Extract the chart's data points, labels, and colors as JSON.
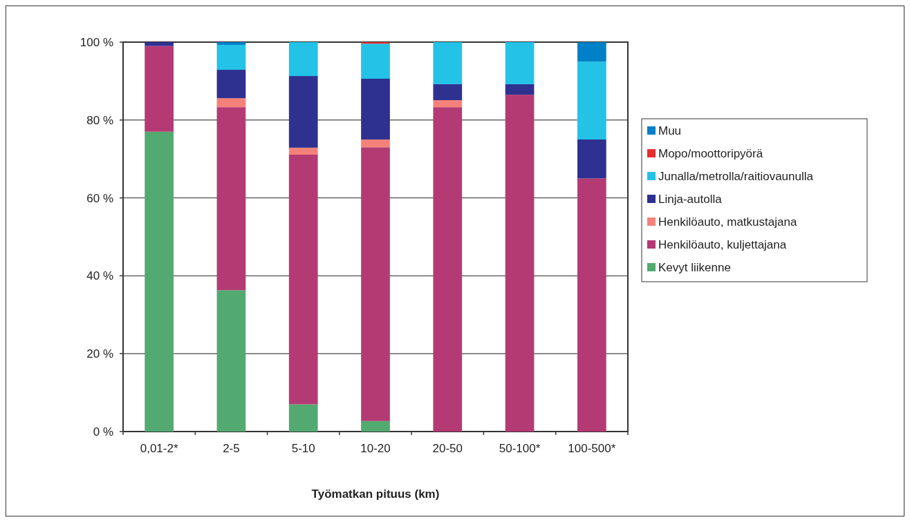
{
  "chart_data": {
    "type": "bar",
    "stacked": true,
    "xlabel": "Työmatkan pituus (km)",
    "categories": [
      "0,01-2*",
      "2-5",
      "5-10",
      "10-20",
      "20-50",
      "50-100*",
      "100-500*"
    ],
    "series": [
      {
        "name": "Kevyt liikenne",
        "color": "#52aa70",
        "values": [
          77,
          36.3,
          7,
          2.7,
          0,
          0,
          0
        ]
      },
      {
        "name": "Henkilöauto, kuljettajana",
        "color": "#b43a74",
        "values": [
          22,
          47,
          64.1,
          70.3,
          83.3,
          86.5,
          65
        ]
      },
      {
        "name": "Henkilöauto, matkustajana",
        "color": "#f4827a",
        "values": [
          0,
          2.3,
          1.8,
          2,
          1.8,
          0,
          0
        ]
      },
      {
        "name": "Linja-autolla",
        "color": "#2e3190",
        "values": [
          1,
          7.3,
          18.4,
          15.6,
          4.1,
          2.7,
          10
        ]
      },
      {
        "name": "Junalla/metrolla/raitiovaunulla",
        "color": "#23c2e6",
        "values": [
          0,
          6.4,
          8.7,
          9,
          10.8,
          10.8,
          20
        ]
      },
      {
        "name": "Mopo/moottoripyörä",
        "color": "#e52d2f",
        "values": [
          0,
          0,
          0,
          0.4,
          0,
          0,
          0
        ]
      },
      {
        "name": "Muu",
        "color": "#0080c6",
        "values": [
          0,
          0.7,
          0,
          0,
          0,
          0,
          5
        ]
      }
    ],
    "ylim": [
      0,
      100
    ],
    "yticks": [
      {
        "value": 0,
        "label": "0 %"
      },
      {
        "value": 20,
        "label": "20 %"
      },
      {
        "value": 40,
        "label": "40 %"
      },
      {
        "value": 60,
        "label": "60 %"
      },
      {
        "value": 80,
        "label": "80 %"
      },
      {
        "value": 100,
        "label": "100 %"
      }
    ],
    "grid": "y",
    "legend": "right"
  }
}
